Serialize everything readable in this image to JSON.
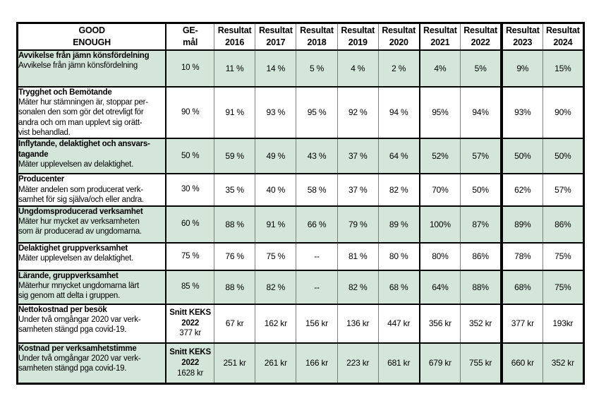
{
  "colors": {
    "row_green": "#d4e5da",
    "grid_gray": "#7d7d7d",
    "grid_black": "#000000",
    "page_background": "#ffffff"
  },
  "header": {
    "columns": [
      [
        "GOOD",
        "ENOUGH"
      ],
      [
        "GE-",
        "mål"
      ],
      [
        "Resultat",
        "2016"
      ],
      [
        "Resultat",
        "2017"
      ],
      [
        "Resultat",
        "2018"
      ],
      [
        "Resultat",
        "2019"
      ],
      [
        "Resultat",
        "2020"
      ],
      [
        "Resultat",
        "2021"
      ],
      [
        "Resultat",
        "2022"
      ],
      [
        "Resultat",
        "2023"
      ],
      [
        "Resultat",
        "2024"
      ]
    ]
  },
  "rows": [
    {
      "bg": "green",
      "title_lines": [
        "Avvikelse från jämn könsfördelning"
      ],
      "desc_lines": [
        "Avvikelse från jämn könsfördelning"
      ],
      "goal_bold_lines": [],
      "goal_lines": [
        "10 %"
      ],
      "values": [
        "11 %",
        "14 %",
        "5 %",
        "4 %",
        "2 %",
        "4%",
        "5%",
        "9%",
        "15%"
      ]
    },
    {
      "bg": "white",
      "title_lines": [
        "Trygghet och Bemötande"
      ],
      "desc_lines": [
        "Mäter hur stämningen är, stoppar per-",
        "sonalen den som gör det otrevligt för",
        "andra och om man upplevt sig orätt-",
        "vist behandlad."
      ],
      "goal_bold_lines": [],
      "goal_lines": [
        "90 %"
      ],
      "values": [
        "91 %",
        "93 %",
        "95 %",
        "92 %",
        "94 %",
        "95%",
        "94%",
        "93%",
        "90%"
      ]
    },
    {
      "bg": "green",
      "title_lines": [
        "Inflytande, delaktighet och ansvars-",
        "tagande"
      ],
      "desc_lines": [
        "Mäter upplevelsen av delaktighet."
      ],
      "goal_bold_lines": [],
      "goal_lines": [
        "50 %"
      ],
      "values": [
        "59 %",
        "49 %",
        "43 %",
        "37 %",
        "64 %",
        "52%",
        "57%",
        "50%",
        "50%"
      ]
    },
    {
      "bg": "white",
      "title_lines": [
        "Producenter"
      ],
      "desc_lines": [
        "Mäter andelen som producerat verk-",
        "samhet för sig själva/och eller andra."
      ],
      "goal_bold_lines": [],
      "goal_lines": [
        "30 %"
      ],
      "values": [
        "35 %",
        "40 %",
        "58 %",
        "37 %",
        "82 %",
        "70%",
        "50%",
        "62%",
        "57%"
      ]
    },
    {
      "bg": "green",
      "title_lines": [
        "Ungdomsproducerad verksamhet"
      ],
      "desc_lines": [
        "Mäter hur mycket av verksamheten",
        "som är producerad av ungdomarna."
      ],
      "goal_bold_lines": [],
      "goal_lines": [
        "60 %"
      ],
      "values": [
        "88 %",
        "91 %",
        "66 %",
        "79 %",
        "89 %",
        "100%",
        "87%",
        "89%",
        "86%"
      ]
    },
    {
      "bg": "white",
      "title_lines": [
        "Delaktighet gruppverksamhet"
      ],
      "desc_lines": [
        "Mäter upplevelsen av delaktighet."
      ],
      "goal_bold_lines": [],
      "goal_lines": [
        "75 %"
      ],
      "values": [
        "76 %",
        "75 %",
        "--",
        "81 %",
        "80 %",
        "80%",
        "86%",
        "78%",
        "75%"
      ]
    },
    {
      "bg": "green",
      "title_lines": [
        "Lärande, gruppverksamhet"
      ],
      "desc_lines": [
        "Mäterhur mnycket ungdomarna lärt",
        "sig genom att delta i gruppen."
      ],
      "goal_bold_lines": [],
      "goal_lines": [
        "85 %"
      ],
      "values": [
        "88 %",
        "82 %",
        "--",
        "82 %",
        "68 %",
        "64%",
        "88%",
        "68%",
        "75%"
      ]
    },
    {
      "bg": "white",
      "title_lines": [
        "Nettokostnad per besök"
      ],
      "desc_lines": [
        "Under två omgångar 2020 var verk-",
        "samheten stängd pga covid-19."
      ],
      "goal_bold_lines": [
        "Snitt KEKS",
        "2022"
      ],
      "goal_lines": [
        "377 kr"
      ],
      "values": [
        "67 kr",
        "162 kr",
        "156 kr",
        "136 kr",
        "447 kr",
        "356 kr",
        "352 kr",
        "377 kr",
        "193kr"
      ]
    },
    {
      "bg": "green",
      "title_lines": [
        "Kostnad per verksamhetstimme"
      ],
      "desc_lines": [
        "Under två omgångar 2020 var verk-",
        "samheten stängd pga covid-19."
      ],
      "goal_bold_lines": [
        "Snitt KEKS",
        "2022"
      ],
      "goal_lines": [
        "1628 kr"
      ],
      "values": [
        "251 kr",
        "261 kr",
        "166 kr",
        "223 kr",
        "681 kr",
        "679 kr",
        "755 kr",
        "660 kr",
        "352 kr"
      ]
    }
  ]
}
